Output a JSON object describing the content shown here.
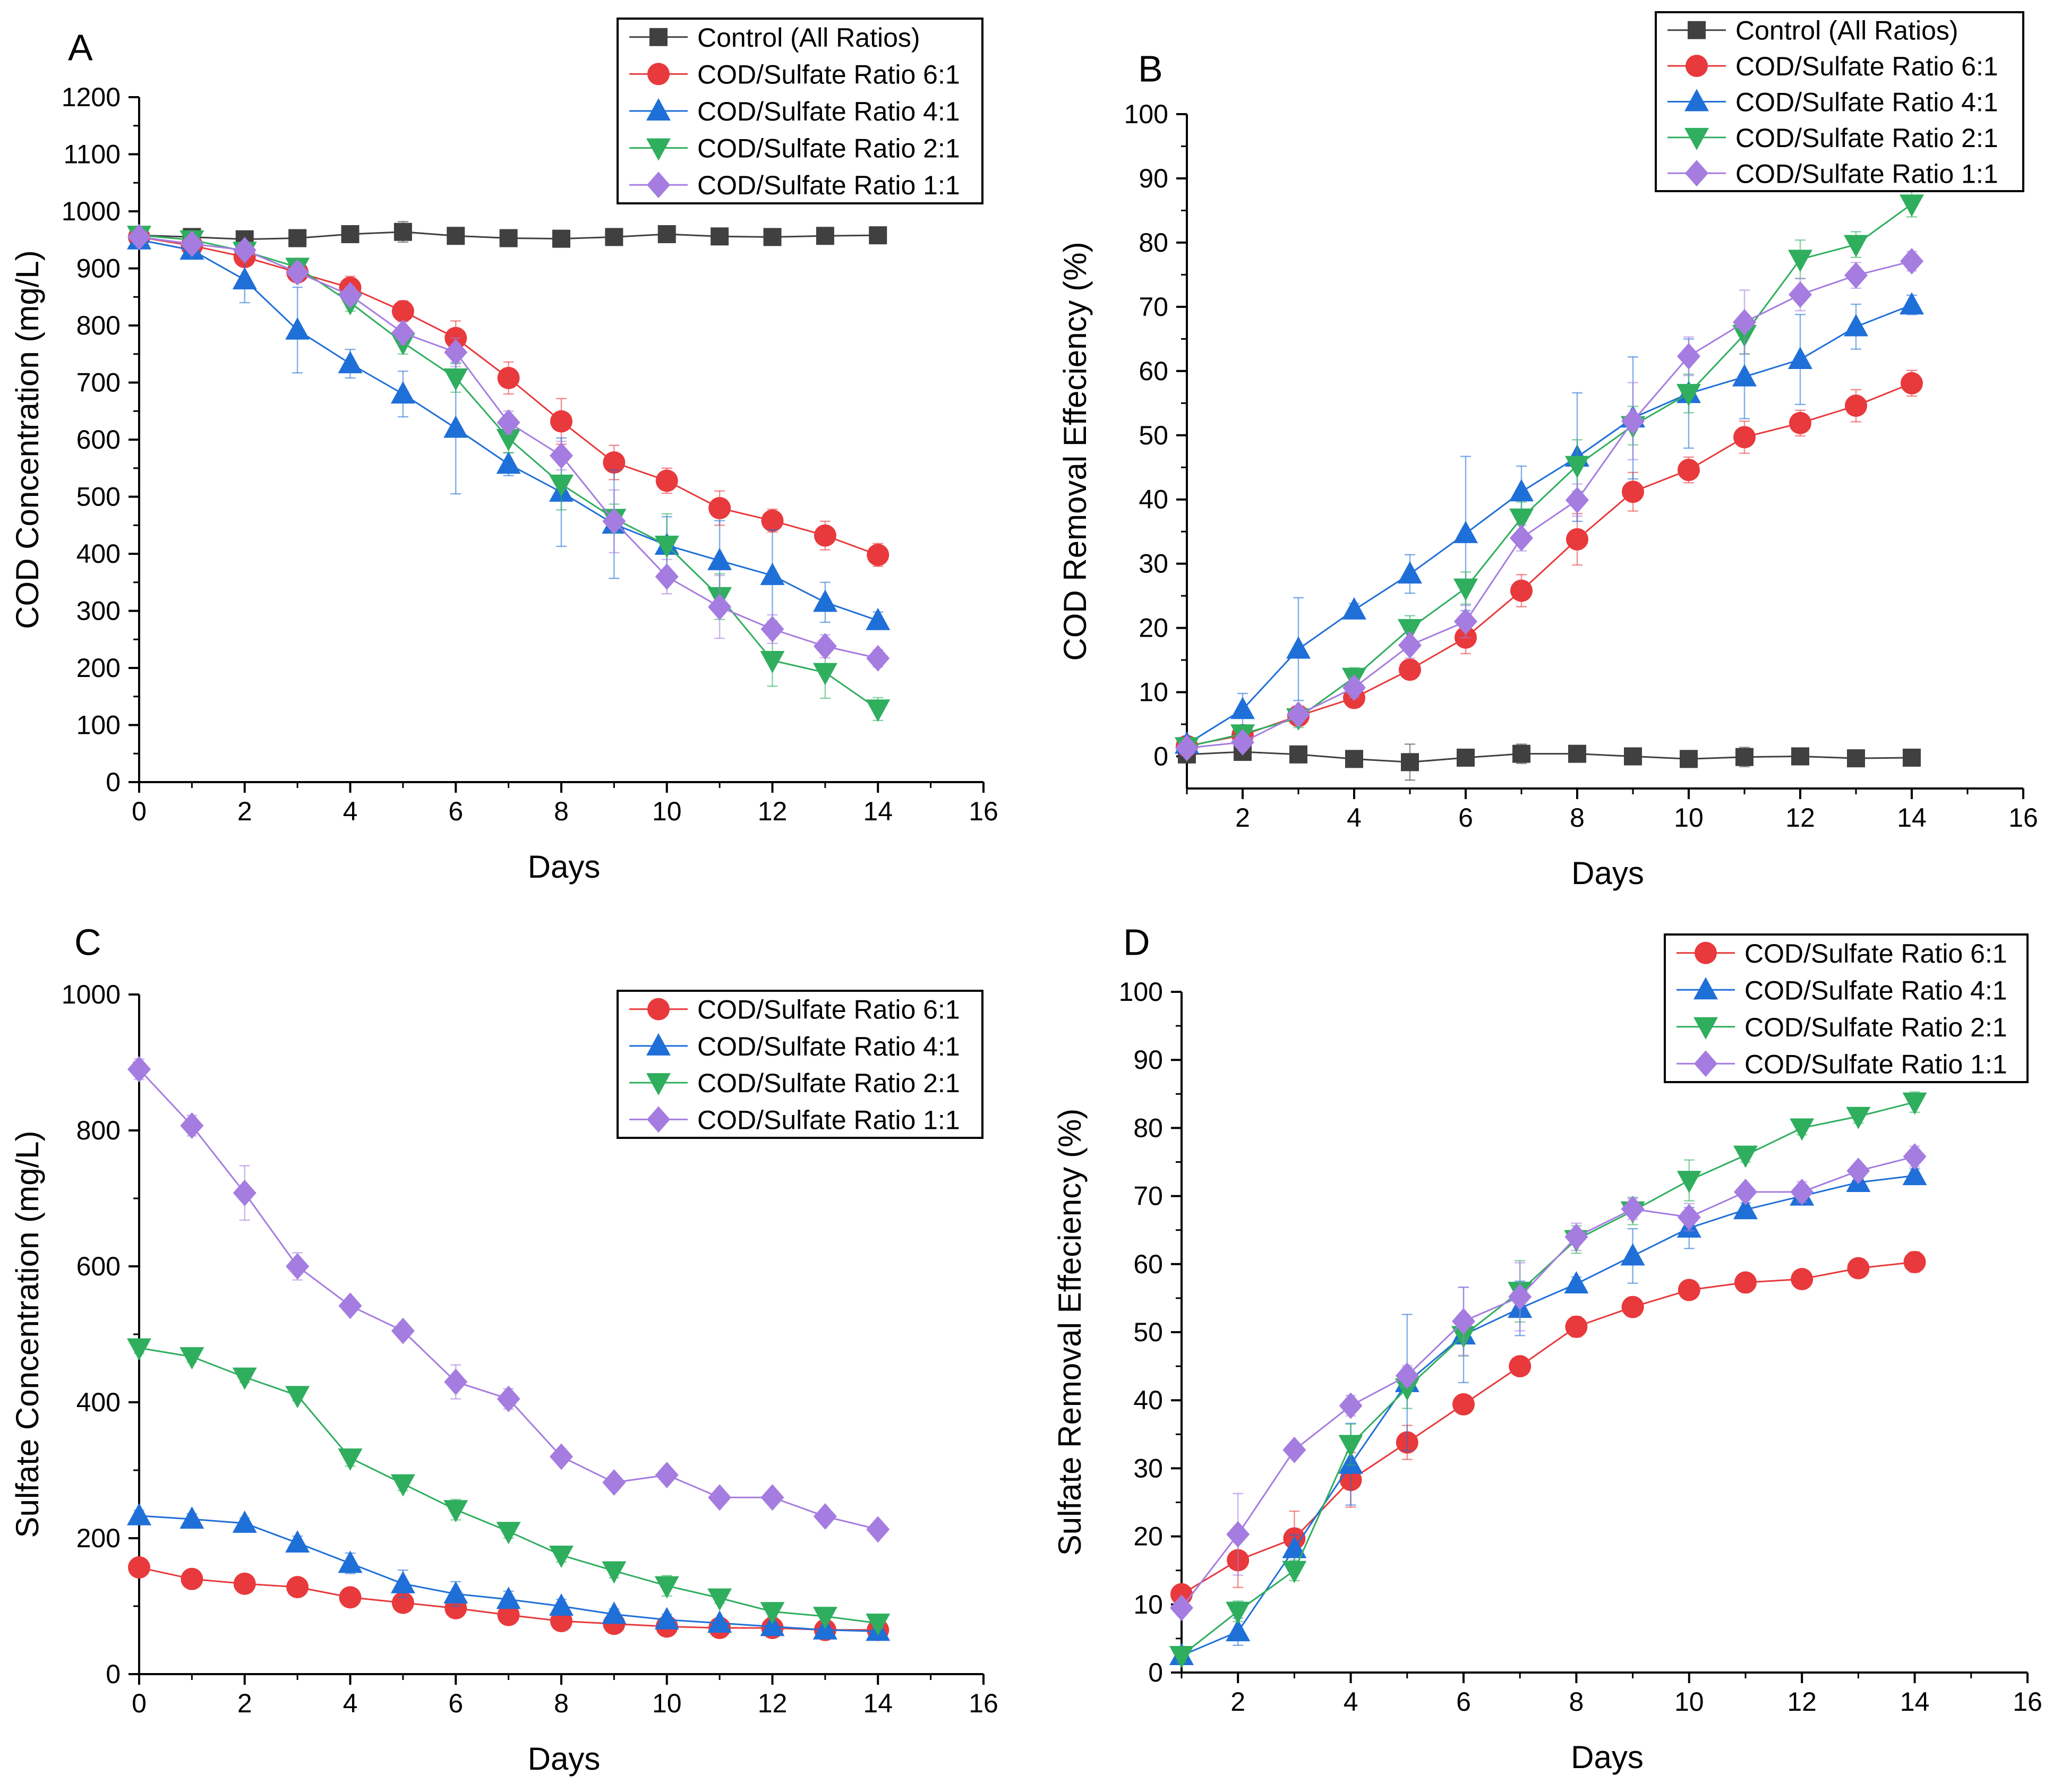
{
  "colors": {
    "control": "#404040",
    "ratio6": "#e8393c",
    "ratio4": "#1f6fd8",
    "ratio2": "#2fae5e",
    "ratio1": "#a57ce0"
  },
  "chart_data": [
    {
      "panel": "A",
      "type": "line",
      "xlabel": "Days",
      "ylabel": "COD Concentration (mg/L)",
      "xlim": [
        0,
        16
      ],
      "ylim": [
        0,
        1200
      ],
      "xticks": [
        0,
        2,
        4,
        6,
        8,
        10,
        12,
        14,
        16
      ],
      "yticks": [
        0,
        100,
        200,
        300,
        400,
        500,
        600,
        700,
        800,
        900,
        1000,
        1100,
        1200
      ],
      "legend_position": "top-right",
      "series": [
        {
          "name": "Control (All Ratios)",
          "marker": "square",
          "color_key": "control",
          "x": [
            0,
            1,
            2,
            3,
            4,
            5,
            6,
            7,
            8,
            9,
            10,
            11,
            12,
            13,
            14
          ],
          "y": [
            958,
            955,
            951,
            953,
            960,
            964,
            957,
            953,
            952,
            955,
            960,
            956,
            955,
            957,
            958
          ],
          "err": [
            8,
            8,
            6,
            6,
            8,
            18,
            10,
            6,
            6,
            6,
            8,
            6,
            6,
            6,
            6
          ]
        },
        {
          "name": "COD/Sulfate Ratio 6:1",
          "marker": "circle",
          "color_key": "ratio6",
          "x": [
            0,
            1,
            2,
            3,
            4,
            5,
            6,
            7,
            8,
            9,
            10,
            11,
            12,
            13,
            14
          ],
          "y": [
            955,
            940,
            920,
            893,
            866,
            825,
            778,
            708,
            632,
            560,
            528,
            480,
            458,
            432,
            398
          ],
          "err": [
            5,
            10,
            10,
            15,
            20,
            18,
            30,
            28,
            40,
            30,
            22,
            30,
            20,
            25,
            20
          ]
        },
        {
          "name": "COD/Sulfate Ratio 4:1",
          "marker": "triangle-up",
          "color_key": "ratio4",
          "x": [
            0,
            1,
            2,
            3,
            4,
            5,
            6,
            7,
            8,
            9,
            10,
            11,
            12,
            13,
            14
          ],
          "y": [
            950,
            932,
            880,
            792,
            733,
            680,
            620,
            557,
            508,
            452,
            415,
            388,
            362,
            315,
            283
          ],
          "err": [
            10,
            10,
            40,
            75,
            25,
            40,
            115,
            20,
            95,
            95,
            50,
            70,
            80,
            35,
            15
          ]
        },
        {
          "name": "COD/Sulfate Ratio 2:1",
          "marker": "triangle-down",
          "color_key": "ratio2",
          "x": [
            0,
            1,
            2,
            3,
            4,
            5,
            6,
            7,
            8,
            9,
            10,
            11,
            12,
            13,
            14
          ],
          "y": [
            958,
            950,
            930,
            902,
            840,
            770,
            708,
            602,
            522,
            462,
            415,
            325,
            213,
            192,
            128
          ],
          "err": [
            5,
            8,
            10,
            15,
            15,
            20,
            25,
            25,
            45,
            25,
            55,
            40,
            45,
            45,
            20
          ]
        },
        {
          "name": "COD/Sulfate Ratio 1:1",
          "marker": "diamond",
          "color_key": "ratio1",
          "x": [
            0,
            1,
            2,
            3,
            4,
            5,
            6,
            7,
            8,
            9,
            10,
            11,
            12,
            13,
            14
          ],
          "y": [
            955,
            943,
            932,
            893,
            853,
            787,
            753,
            630,
            572,
            457,
            360,
            307,
            268,
            238,
            217
          ],
          "err": [
            5,
            8,
            8,
            15,
            15,
            20,
            25,
            20,
            25,
            55,
            30,
            55,
            25,
            20,
            15
          ]
        }
      ]
    },
    {
      "panel": "B",
      "type": "line",
      "xlabel": "Days",
      "ylabel": "COD Removal Effeciency (%)",
      "xlim": [
        1,
        16
      ],
      "ylim": [
        -5,
        100
      ],
      "xticks": [
        2,
        4,
        6,
        8,
        10,
        12,
        14,
        16
      ],
      "yticks": [
        0,
        10,
        20,
        30,
        40,
        50,
        60,
        70,
        80,
        90,
        100
      ],
      "legend_position": "top-right",
      "series": [
        {
          "name": "Control (All Ratios)",
          "marker": "square",
          "color_key": "control",
          "x": [
            1,
            2,
            3,
            4,
            5,
            6,
            7,
            8,
            9,
            10,
            11,
            12,
            13,
            14
          ],
          "y": [
            0.3,
            0.7,
            0.3,
            -0.4,
            -0.9,
            -0.2,
            0.4,
            0.4,
            0.0,
            -0.4,
            -0.1,
            0.0,
            -0.3,
            -0.2
          ],
          "err": [
            1,
            0.8,
            0.6,
            0.8,
            2.8,
            1,
            1.5,
            0.8,
            0.6,
            0.8,
            1.5,
            0.8,
            0.6,
            0.6
          ]
        },
        {
          "name": "COD/Sulfate Ratio 6:1",
          "marker": "circle",
          "color_key": "ratio6",
          "x": [
            1,
            2,
            3,
            4,
            5,
            6,
            7,
            8,
            9,
            10,
            11,
            12,
            13,
            14
          ],
          "y": [
            1.6,
            3.3,
            6.3,
            9.1,
            13.5,
            18.5,
            25.8,
            33.8,
            41.2,
            44.6,
            49.7,
            51.9,
            54.6,
            58.1
          ],
          "err": [
            0.5,
            1,
            1.5,
            1.5,
            1.5,
            2.5,
            2.5,
            4,
            3,
            2,
            2.5,
            2,
            2.5,
            2
          ]
        },
        {
          "name": "COD/Sulfate Ratio 4:1",
          "marker": "triangle-up",
          "color_key": "ratio4",
          "x": [
            1,
            2,
            3,
            4,
            5,
            6,
            7,
            8,
            9,
            10,
            11,
            12,
            13,
            14
          ],
          "y": [
            1.9,
            7.3,
            16.7,
            22.8,
            28.4,
            34.7,
            41.2,
            46.6,
            52.7,
            56.5,
            59.1,
            61.8,
            66.9,
            70.3
          ],
          "err": [
            1,
            2.5,
            8,
            1,
            3,
            12,
            4,
            10,
            9.5,
            8.5,
            6.5,
            7,
            3.5,
            1.5
          ]
        },
        {
          "name": "COD/Sulfate Ratio 2:1",
          "marker": "triangle-down",
          "color_key": "ratio2",
          "x": [
            1,
            2,
            3,
            4,
            5,
            6,
            7,
            8,
            9,
            10,
            11,
            12,
            13,
            14
          ],
          "y": [
            1.5,
            3.5,
            6.0,
            12.3,
            19.9,
            26.2,
            37.1,
            45.3,
            51.5,
            56.5,
            65.7,
            77.4,
            79.7,
            86.0
          ],
          "err": [
            0.5,
            1,
            1.5,
            1.5,
            2,
            2.5,
            2.5,
            4,
            3,
            3,
            3,
            3,
            2,
            2
          ]
        },
        {
          "name": "COD/Sulfate Ratio 1:1",
          "marker": "diamond",
          "color_key": "ratio1",
          "x": [
            1,
            2,
            3,
            4,
            5,
            6,
            7,
            8,
            9,
            10,
            11,
            12,
            13,
            14
          ],
          "y": [
            1.3,
            2.2,
            6.5,
            10.7,
            17.3,
            21.0,
            34.0,
            39.9,
            52.2,
            62.3,
            67.6,
            71.9,
            74.9,
            77.1
          ],
          "err": [
            0.5,
            1,
            1,
            1.5,
            2,
            2.5,
            2,
            2.5,
            6,
            3,
            5,
            2.5,
            2,
            1.5
          ]
        }
      ]
    },
    {
      "panel": "C",
      "type": "line",
      "xlabel": "Days",
      "ylabel": "Sulfate Concentration (mg/L)",
      "xlim": [
        0,
        16
      ],
      "ylim": [
        0,
        1000
      ],
      "xticks": [
        0,
        2,
        4,
        6,
        8,
        10,
        12,
        14,
        16
      ],
      "yticks": [
        0,
        200,
        400,
        600,
        800,
        1000
      ],
      "legend_position": "top-right",
      "series": [
        {
          "name": "COD/Sulfate Ratio 6:1",
          "marker": "circle",
          "color_key": "ratio6",
          "x": [
            0,
            1,
            2,
            3,
            4,
            5,
            6,
            7,
            8,
            9,
            10,
            11,
            12,
            13,
            14
          ],
          "y": [
            157,
            140,
            133,
            128,
            113,
            105,
            97,
            87,
            78,
            74,
            70,
            68,
            68,
            65,
            65
          ],
          "err": [
            5,
            5,
            5,
            5,
            5,
            5,
            5,
            5,
            5,
            5,
            5,
            5,
            5,
            5,
            5
          ]
        },
        {
          "name": "COD/Sulfate Ratio 4:1",
          "marker": "triangle-up",
          "color_key": "ratio4",
          "x": [
            0,
            1,
            2,
            3,
            4,
            5,
            6,
            7,
            8,
            9,
            10,
            11,
            12,
            13,
            14
          ],
          "y": [
            233,
            228,
            222,
            193,
            163,
            133,
            118,
            110,
            100,
            88,
            80,
            75,
            70,
            65,
            63
          ],
          "err": [
            8,
            8,
            8,
            10,
            15,
            20,
            18,
            12,
            10,
            8,
            8,
            5,
            5,
            5,
            5
          ]
        },
        {
          "name": "COD/Sulfate Ratio 2:1",
          "marker": "triangle-down",
          "color_key": "ratio2",
          "x": [
            0,
            1,
            2,
            3,
            4,
            5,
            6,
            7,
            8,
            9,
            10,
            11,
            12,
            13,
            14
          ],
          "y": [
            480,
            467,
            437,
            410,
            318,
            280,
            242,
            210,
            175,
            152,
            130,
            112,
            92,
            85,
            75
          ],
          "err": [
            8,
            8,
            8,
            8,
            12,
            10,
            15,
            10,
            10,
            10,
            15,
            8,
            8,
            8,
            8
          ]
        },
        {
          "name": "COD/Sulfate Ratio 1:1",
          "marker": "diamond",
          "color_key": "ratio1",
          "x": [
            0,
            1,
            2,
            3,
            4,
            5,
            6,
            7,
            8,
            9,
            10,
            11,
            12,
            13,
            14
          ],
          "y": [
            890,
            807,
            708,
            600,
            542,
            505,
            430,
            405,
            320,
            282,
            293,
            260,
            260,
            232,
            213
          ],
          "err": [
            15,
            15,
            40,
            20,
            10,
            10,
            25,
            15,
            10,
            10,
            10,
            10,
            10,
            10,
            10
          ]
        }
      ]
    },
    {
      "panel": "D",
      "type": "line",
      "xlabel": "Days",
      "ylabel": "Sulfate Removal Effeciency (%)",
      "xlim": [
        1,
        16
      ],
      "ylim": [
        0,
        100
      ],
      "xticks": [
        2,
        4,
        6,
        8,
        10,
        12,
        14,
        16
      ],
      "yticks": [
        0,
        10,
        20,
        30,
        40,
        50,
        60,
        70,
        80,
        90,
        100
      ],
      "legend_position": "top-right",
      "series": [
        {
          "name": "COD/Sulfate Ratio 6:1",
          "marker": "circle",
          "color_key": "ratio6",
          "x": [
            1,
            2,
            3,
            4,
            5,
            6,
            7,
            8,
            9,
            10,
            11,
            12,
            13,
            14
          ],
          "y": [
            11.5,
            16.5,
            19.7,
            28.3,
            33.8,
            39.4,
            45.0,
            50.8,
            53.7,
            56.2,
            57.3,
            57.8,
            59.4,
            60.3
          ],
          "err": [
            1,
            4,
            4,
            4,
            2.5,
            1,
            1,
            1.5,
            1,
            1,
            1,
            1,
            1,
            1.5
          ]
        },
        {
          "name": "COD/Sulfate Ratio 4:1",
          "marker": "triangle-up",
          "color_key": "ratio4",
          "x": [
            1,
            2,
            3,
            4,
            5,
            6,
            7,
            8,
            9,
            10,
            11,
            12,
            13,
            14
          ],
          "y": [
            2.5,
            6.0,
            18.2,
            30.6,
            42.6,
            49.6,
            53.5,
            57.1,
            61.2,
            65.3,
            68.0,
            70.0,
            72.0,
            73.0
          ],
          "err": [
            1,
            2,
            2,
            6,
            10,
            7,
            4,
            1,
            4,
            3,
            1,
            1,
            1,
            1
          ]
        },
        {
          "name": "COD/Sulfate Ratio 2:1",
          "marker": "triangle-down",
          "color_key": "ratio2",
          "x": [
            1,
            2,
            3,
            4,
            5,
            6,
            7,
            8,
            9,
            10,
            11,
            12,
            13,
            14
          ],
          "y": [
            2.5,
            9.0,
            15.0,
            33.5,
            41.8,
            49.5,
            56.0,
            63.6,
            67.8,
            72.3,
            76.0,
            80.0,
            81.7,
            83.8
          ],
          "err": [
            1,
            1.5,
            1.5,
            3,
            3,
            3,
            4.5,
            2,
            2,
            3,
            1,
            1,
            1,
            1.5
          ]
        },
        {
          "name": "COD/Sulfate Ratio 1:1",
          "marker": "diamond",
          "color_key": "ratio1",
          "x": [
            1,
            2,
            3,
            4,
            5,
            6,
            7,
            8,
            9,
            10,
            11,
            12,
            13,
            14
          ],
          "y": [
            9.5,
            20.3,
            32.7,
            39.2,
            43.6,
            51.6,
            55.2,
            64.0,
            68.1,
            66.9,
            70.6,
            70.6,
            73.7,
            75.8
          ],
          "err": [
            1,
            6,
            1,
            1.5,
            1.5,
            5,
            5,
            2,
            1.5,
            2,
            1,
            1.5,
            1,
            1.5
          ]
        }
      ]
    }
  ]
}
